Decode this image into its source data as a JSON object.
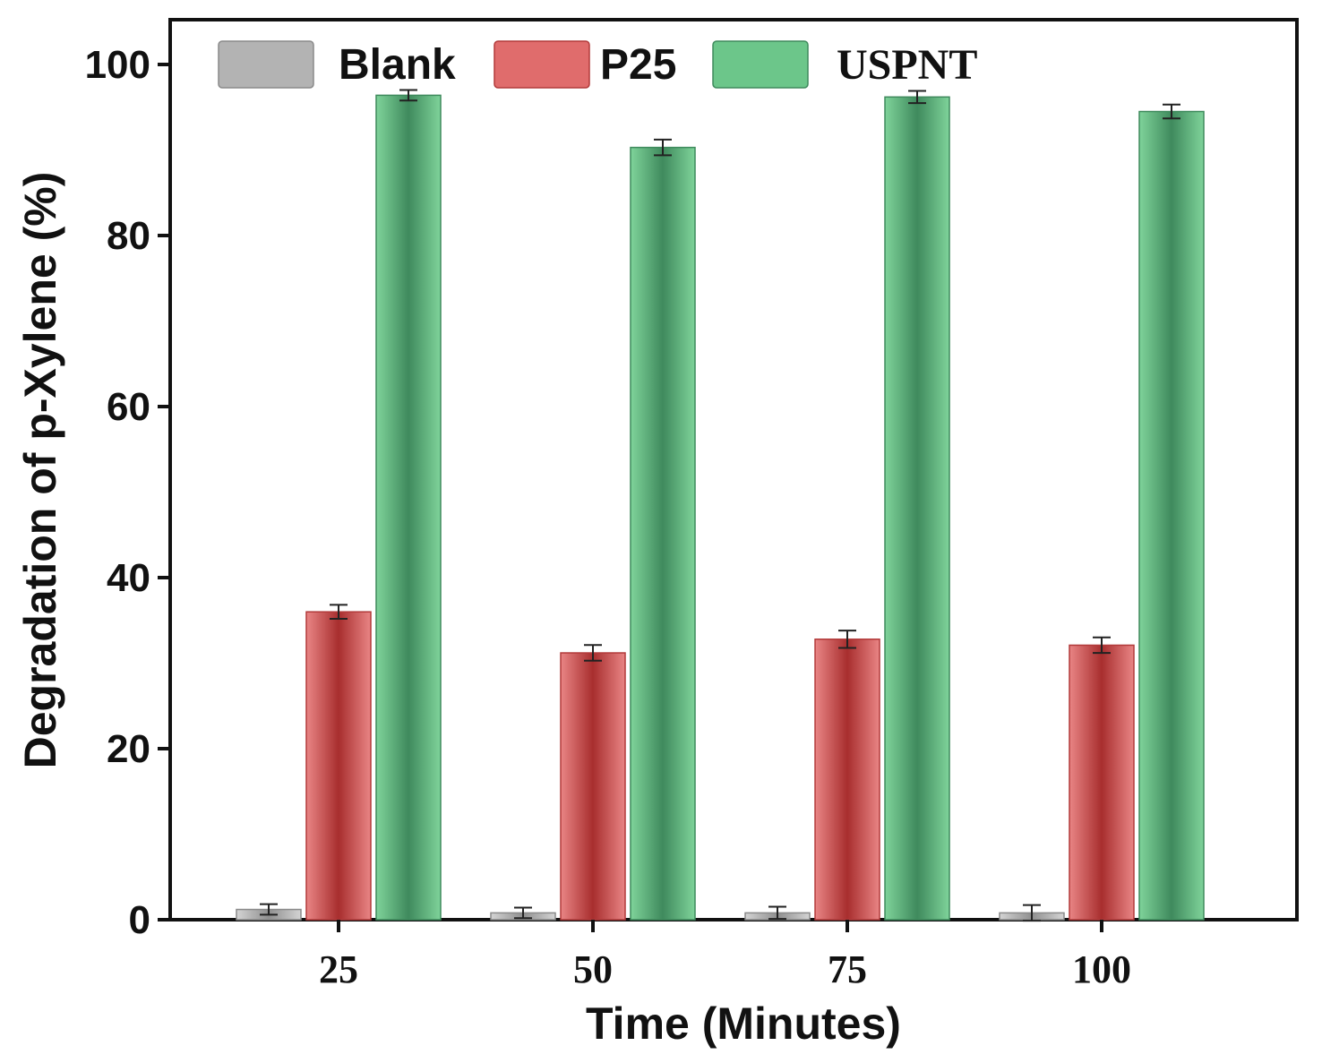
{
  "chart_data": {
    "type": "bar",
    "xlabel": "Time (Minutes)",
    "ylabel": "Degradation of p-Xylene (%)",
    "ylim": [
      0,
      100
    ],
    "yticks": [
      0,
      20,
      40,
      60,
      80,
      100
    ],
    "categories": [
      "25",
      "50",
      "75",
      "100"
    ],
    "legend_position": "top",
    "grid": false,
    "series": [
      {
        "name": "Blank",
        "values": [
          1.2,
          0.8,
          0.8,
          0.8
        ],
        "errors": [
          0.3,
          0.3,
          0.4,
          0.6
        ],
        "color": "#b3b3b3",
        "edge": "#8a8a8a"
      },
      {
        "name": "P25",
        "values": [
          36.0,
          31.2,
          32.8,
          32.1
        ],
        "errors": [
          0.5,
          0.6,
          0.7,
          0.6
        ],
        "color": "#e06c6c",
        "edge": "#b23a3a"
      },
      {
        "name": "USPNT",
        "values": [
          96.4,
          90.3,
          96.2,
          94.5
        ],
        "errors": [
          0.3,
          0.6,
          0.4,
          0.5
        ],
        "color": "#6cc68a",
        "edge": "#3e8a5c"
      }
    ]
  }
}
